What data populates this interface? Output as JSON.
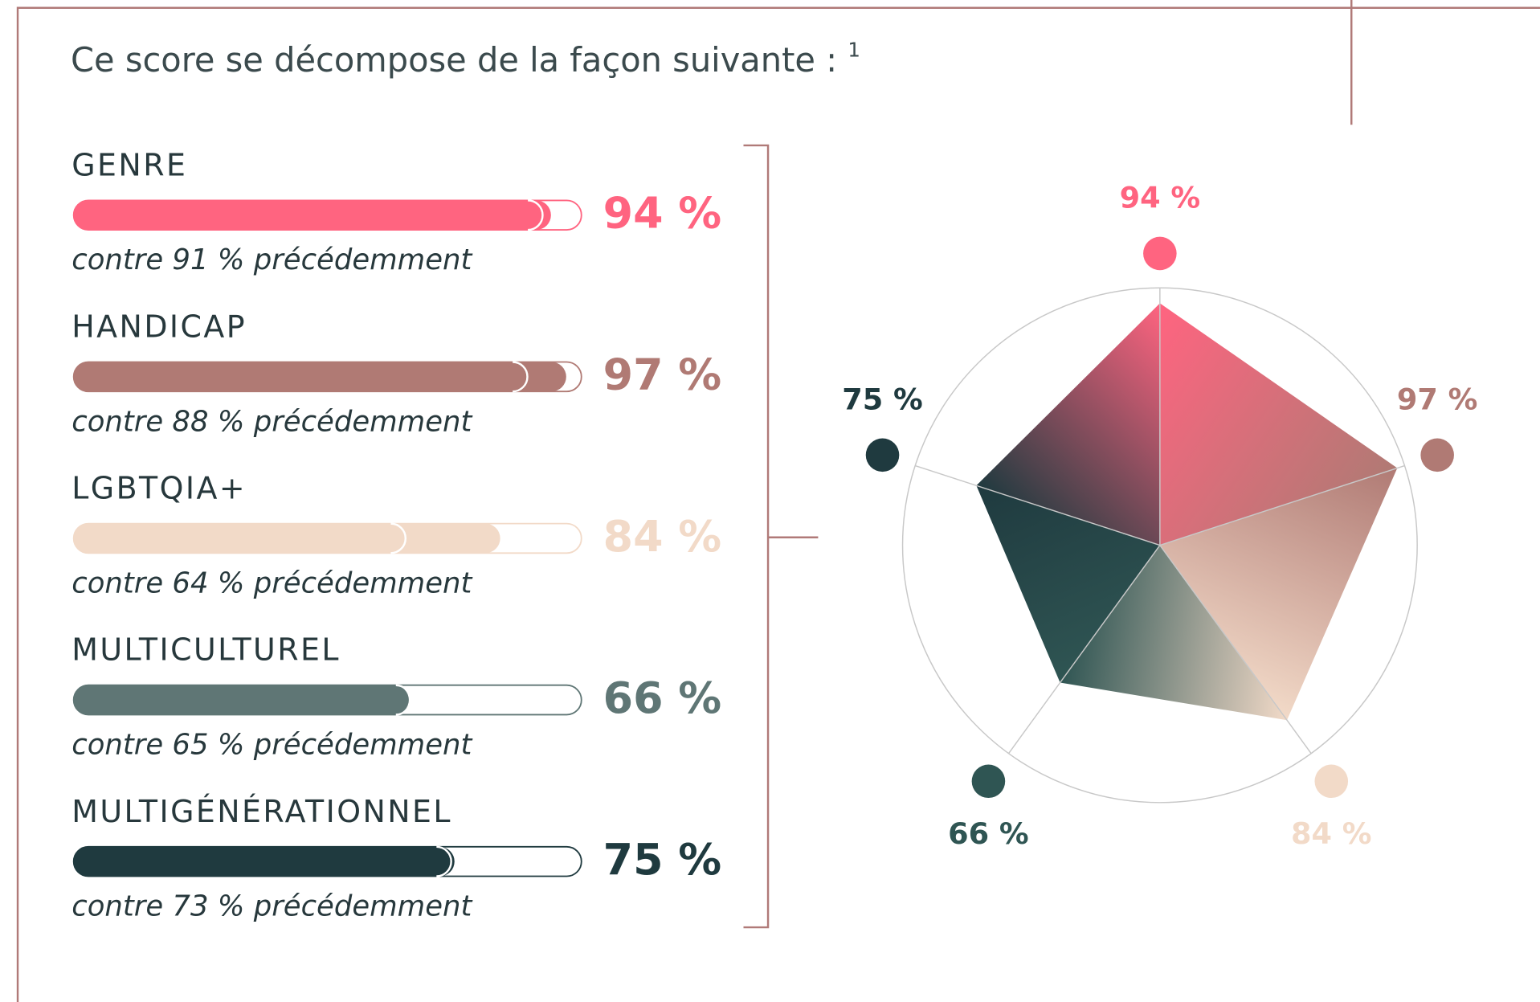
{
  "title": "Ce score se décompose de la façon suivante :",
  "footnote_mark": "1",
  "chart_data": [
    {
      "type": "bar",
      "categories": [
        "GENRE",
        "HANDICAP",
        "LGBTQIA+",
        "MULTICULTUREL",
        "MULTIGÉNÉRATIONNEL"
      ],
      "values": [
        94,
        97,
        84,
        66,
        75
      ],
      "value_labels": [
        "94 %",
        "97 %",
        "84 %",
        "66 %",
        "75 %"
      ],
      "previous": [
        91,
        88,
        64,
        65,
        73
      ],
      "notes": [
        "contre 91 % précédemment",
        "contre 88 % précédemment",
        "contre 64 % précédemment",
        "contre 65 % précédemment",
        "contre 73 % précédemment"
      ],
      "colors": [
        "#ff6480",
        "#b07a74",
        "#f2dac8",
        "#5f7675",
        "#1f3a3f"
      ],
      "xlim": [
        0,
        100
      ]
    },
    {
      "type": "radar",
      "values": [
        94,
        97,
        84,
        66,
        75
      ],
      "value_labels": [
        "94 %",
        "97 %",
        "84 %",
        "66 %",
        "75 %"
      ],
      "colors": [
        "#ff6480",
        "#b07a74",
        "#f2dac8",
        "#2f5553",
        "#1f3a3f"
      ],
      "rlim": [
        0,
        100
      ]
    }
  ]
}
